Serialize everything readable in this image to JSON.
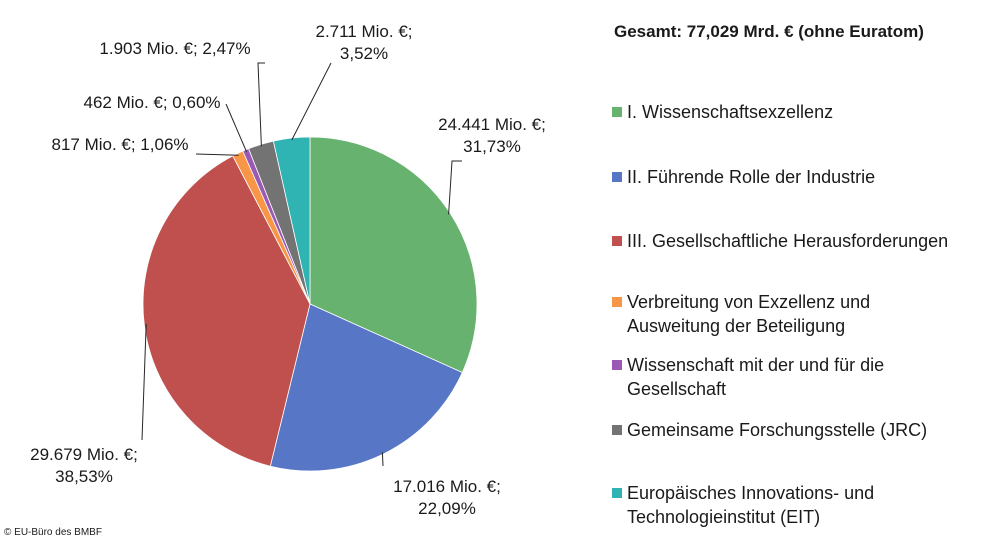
{
  "total_title": "Gesamt: 77,029 Mrd. € (ohne Euratom)",
  "copyright": "© EU-Büro des BMBF",
  "chart_data": {
    "type": "pie",
    "start_angle_deg": 0,
    "direction": "clockwise",
    "legend_position": "right",
    "slices": [
      {
        "name": "I. Wissenschaftsexzellenz",
        "value": 24441,
        "percent": 31.73,
        "color": "#66b26e",
        "label_lines": [
          "24.441 Mio. €;",
          "31,73%"
        ]
      },
      {
        "name": "II. Führende Rolle der Industrie",
        "value": 17016,
        "percent": 22.09,
        "color": "#5876c6",
        "label_lines": [
          "17.016 Mio. €;",
          "22,09%"
        ]
      },
      {
        "name": "III. Gesellschaftliche Herausforderungen",
        "value": 29679,
        "percent": 38.53,
        "color": "#c0504d",
        "label_lines": [
          "29.679 Mio. €;",
          "38,53%"
        ]
      },
      {
        "name": "Verbreitung von Exzellenz und\nAusweitung der Beteiligung",
        "value": 817,
        "percent": 1.06,
        "color": "#f79646",
        "label_lines": [
          "817 Mio. €; 1,06%"
        ]
      },
      {
        "name": "Wissenschaft mit der und für die\nGesellschaft",
        "value": 462,
        "percent": 0.6,
        "color": "#9b59b6",
        "label_lines": [
          "462 Mio. €; 0,60%"
        ]
      },
      {
        "name": "Gemeinsame Forschungsstelle (JRC)",
        "value": 1903,
        "percent": 2.47,
        "color": "#737373",
        "label_lines": [
          "1.903 Mio. €; 2,47%"
        ]
      },
      {
        "name": "Europäisches Innovations- und\nTechnologieinstitut (EIT)",
        "value": 2711,
        "percent": 3.52,
        "color": "#2fb3b3",
        "label_lines": [
          "2.711 Mio. €;",
          "3,52%"
        ]
      }
    ]
  }
}
